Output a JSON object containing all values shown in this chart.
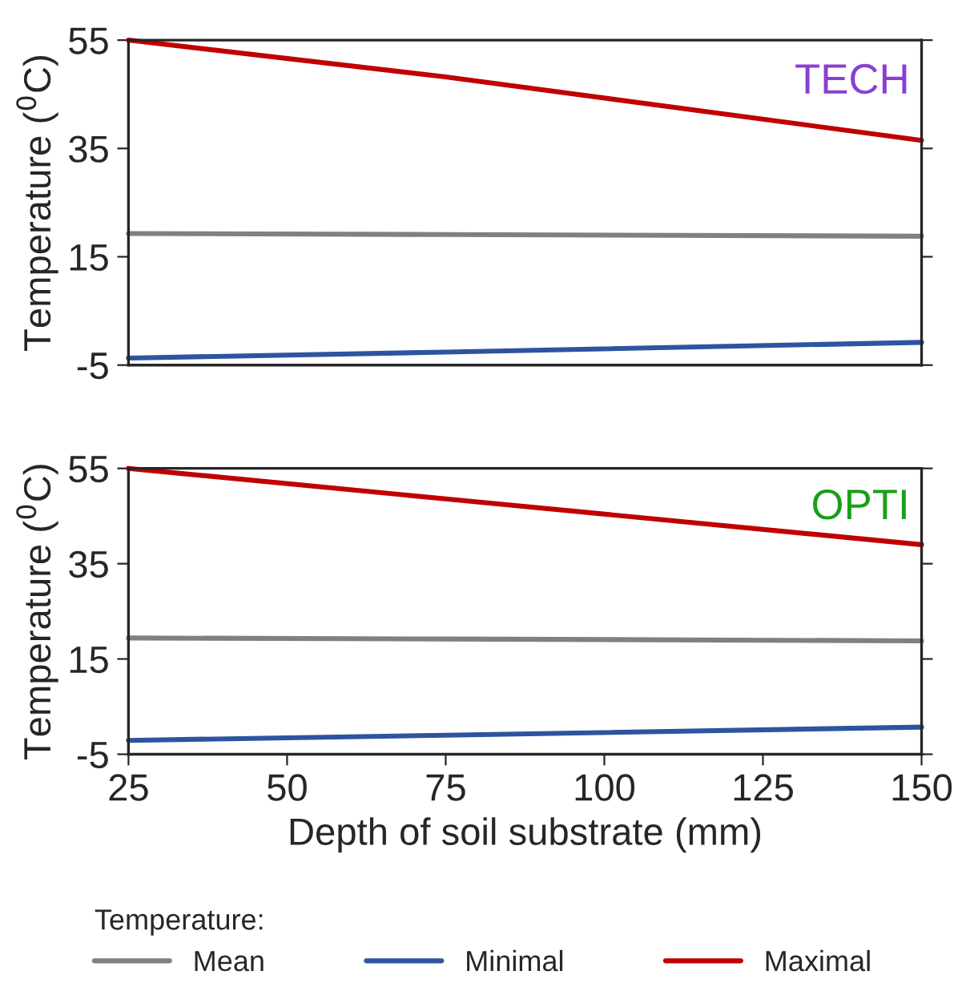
{
  "chart_data": [
    {
      "type": "line",
      "ylabel": "Temperature ($^{0}$C)",
      "annotations": [
        "TECH"
      ],
      "xlim": [
        25,
        150
      ],
      "ylim": [
        -5,
        55
      ],
      "yticks": [
        -5,
        15,
        35,
        55
      ],
      "tick_labels": "y",
      "x": [
        25,
        75,
        150
      ],
      "series": [
        {
          "color": "#808080",
          "values": [
            19.3,
            19.1,
            18.8
          ]
        },
        {
          "color": "#2e54a0",
          "values": [
            -3.7,
            -2.6,
            -0.8
          ]
        },
        {
          "color": "#c00000",
          "values": [
            55,
            48.2,
            36.5
          ]
        }
      ]
    },
    {
      "type": "line",
      "ylabel": "Temperature ($^{0}$C)",
      "xlabel": "Depth of soil substrate (mm)",
      "annotations": [
        "OPTI"
      ],
      "legend_title": "Temperature:",
      "legend": "bottom",
      "xlim": [
        25,
        150
      ],
      "xticks": [
        25,
        50,
        75,
        100,
        125,
        150
      ],
      "ylim": [
        -5,
        55
      ],
      "yticks": [
        -5,
        15,
        35,
        55
      ],
      "x": [
        25,
        75,
        150
      ],
      "series": [
        {
          "name": "Mean",
          "color": "#808080",
          "values": [
            19.4,
            19.2,
            18.8
          ]
        },
        {
          "name": "Minimal",
          "color": "#2e54a0",
          "values": [
            -2.1,
            -1.0,
            0.7
          ]
        },
        {
          "name": "Maximal",
          "color": "#c00000",
          "values": [
            55,
            48.6,
            39
          ]
        }
      ]
    }
  ]
}
